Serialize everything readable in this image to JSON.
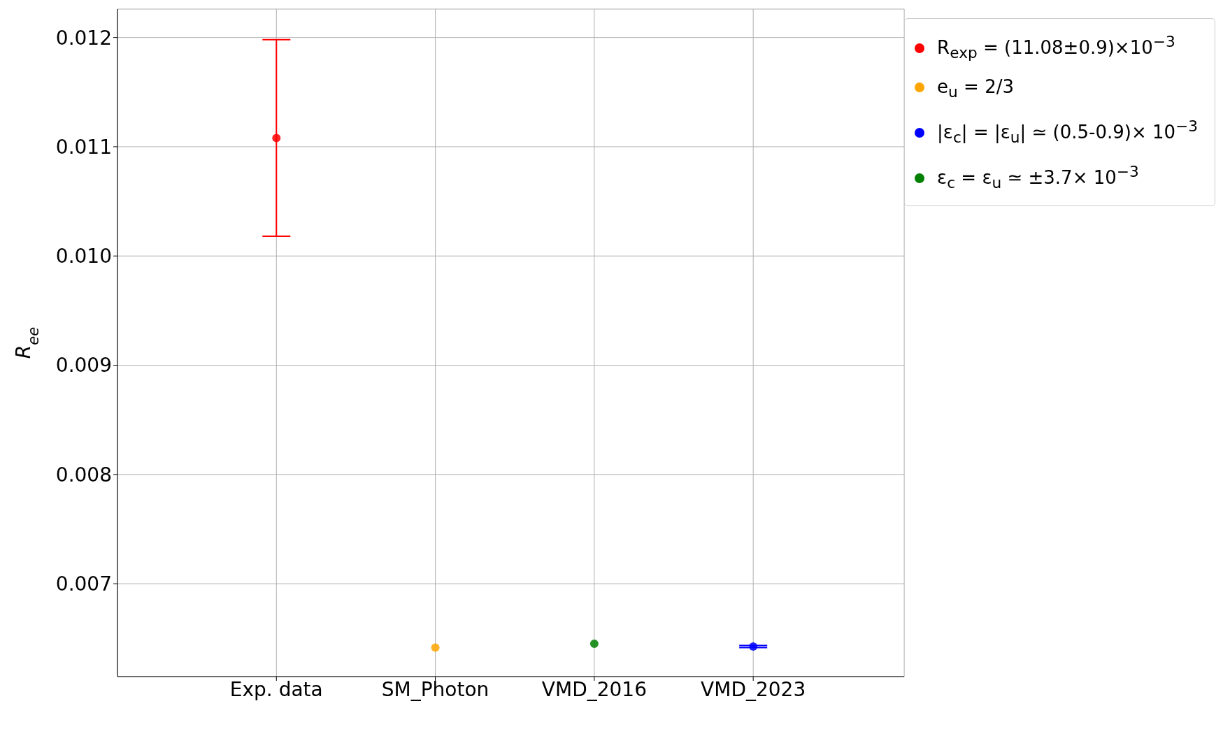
{
  "chart_data": {
    "type": "scatter",
    "ylabel": "R$_{ee}$",
    "categories": [
      "Exp. data",
      "SM_Photon",
      "VMD_2016",
      "VMD_2023"
    ],
    "series": [
      {
        "name": "R$_{exp}$ = (11.08±0.9)×10$^{−3}$",
        "color": "#ff0000",
        "x": [
          "Exp. data"
        ],
        "values": [
          0.01108
        ],
        "errors": [
          0.0009
        ]
      },
      {
        "name": "e$_{u}$ = 2/3",
        "color": "#ffa500",
        "x": [
          "SM_Photon"
        ],
        "values": [
          0.006416
        ],
        "errors": [
          0
        ]
      },
      {
        "name": "ε$_{c}$ = ε$_{u}$ ≃ ±3.7× 10$^{−3}$",
        "color": "#008000",
        "x": [
          "VMD_2016"
        ],
        "values": [
          0.00645
        ],
        "errors": [
          0
        ]
      },
      {
        "name": "|ε$_{c}$| = |ε$_{u}$| ≃ (0.5-0.9)× 10$^{−3}$",
        "color": "#0000ff",
        "x": [
          "VMD_2023"
        ],
        "values": [
          0.006425
        ],
        "errors": [
          1e-05
        ]
      }
    ],
    "ylim": [
      0.00615,
      0.01226
    ],
    "yticks": [
      0.007,
      0.008,
      0.009,
      {
        "value": 0.01,
        "label": "0.010"
      },
      0.011,
      0.012
    ],
    "grid": true,
    "legend": "top right",
    "marker": "circle"
  }
}
